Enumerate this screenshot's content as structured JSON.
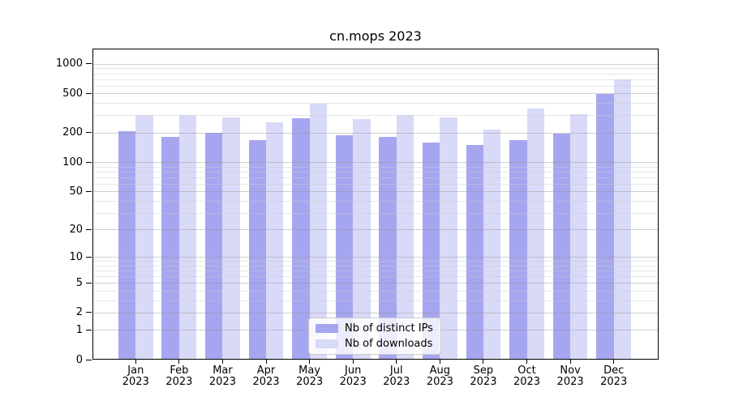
{
  "title": "cn.mops 2023",
  "chart_data": {
    "type": "bar",
    "title": "cn.mops 2023",
    "categories": [
      "Jan\n2023",
      "Feb\n2023",
      "Mar\n2023",
      "Apr\n2023",
      "May\n2023",
      "Jun\n2023",
      "Jul\n2023",
      "Aug\n2023",
      "Sep\n2023",
      "Oct\n2023",
      "Nov\n2023",
      "Dec\n2023"
    ],
    "series": [
      {
        "name": "Nb of distinct IPs",
        "color": "#a6a6f0",
        "values": [
          201,
          178,
          194,
          166,
          275,
          186,
          177,
          155,
          147,
          163,
          191,
          485
        ]
      },
      {
        "name": "Nb of downloads",
        "color": "#d9d9f8",
        "values": [
          298,
          295,
          278,
          249,
          385,
          268,
          296,
          281,
          212,
          343,
          302,
          680
        ]
      }
    ],
    "xlabel": "",
    "ylabel": "",
    "yscale": "log1p",
    "ylim": [
      0,
      1430
    ],
    "yticks": [
      1000,
      500,
      200,
      100,
      50,
      20,
      10,
      5,
      2,
      1,
      0
    ],
    "yticks_minor": [
      900,
      800,
      700,
      600,
      400,
      300,
      90,
      80,
      70,
      60,
      40,
      30,
      9,
      8,
      7,
      6,
      4,
      3
    ],
    "grid": true,
    "legend_position": "lower center"
  }
}
